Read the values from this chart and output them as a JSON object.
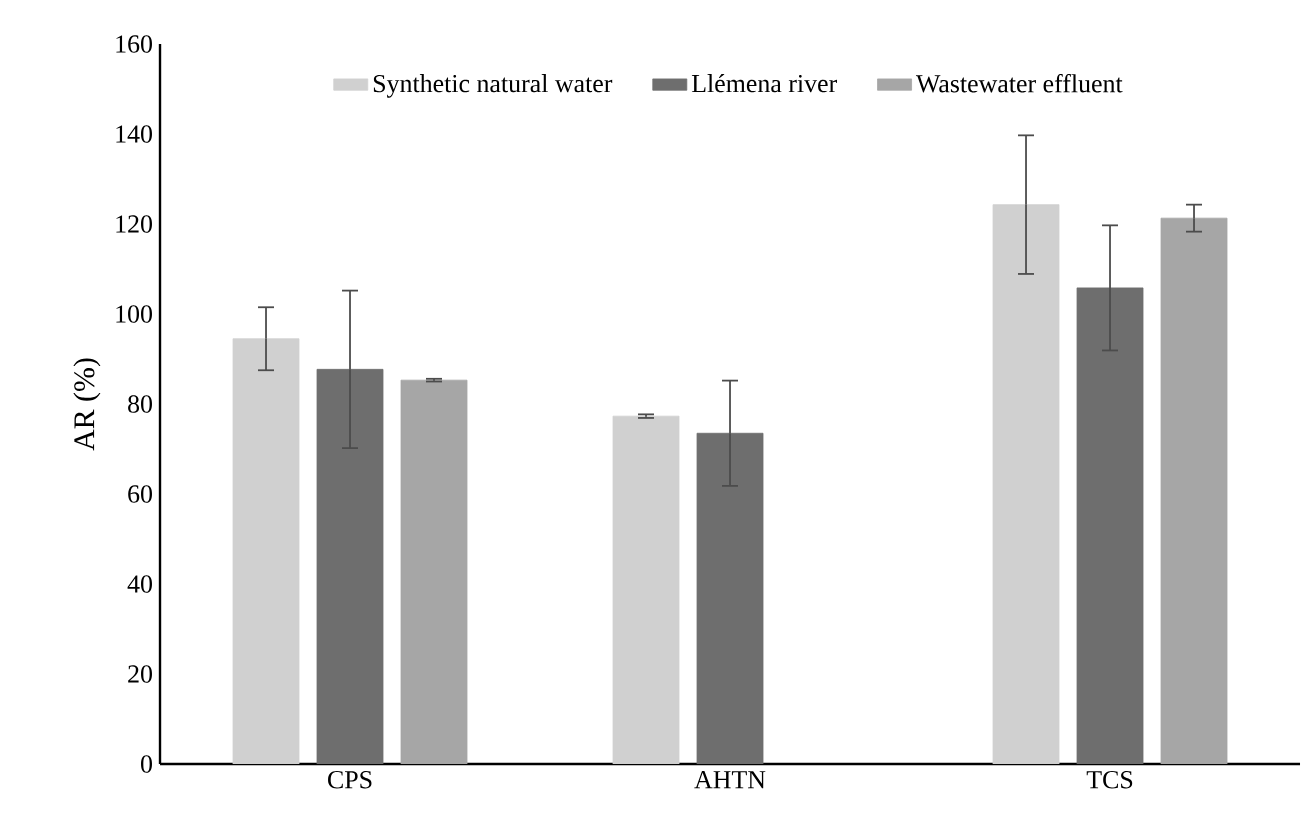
{
  "chart_data": {
    "type": "bar",
    "ylabel": "AR (%)",
    "categories": [
      "CPS",
      "AHTN",
      "TCS"
    ],
    "ylim": [
      0,
      160
    ],
    "yticks": [
      0,
      20,
      40,
      60,
      80,
      100,
      120,
      140,
      160
    ],
    "legend": "top",
    "grid": false,
    "series": [
      {
        "name": "Synthetic natural water",
        "color": "#d0d0d0",
        "values": [
          94.5,
          77.3,
          124.3
        ],
        "errors": [
          7,
          0.4,
          15.4
        ]
      },
      {
        "name": "Llémena river",
        "color": "#6e6e6e",
        "values": [
          87.7,
          73.5,
          105.8
        ],
        "errors": [
          17.5,
          11.7,
          13.9
        ]
      },
      {
        "name": "Wastewater effluent",
        "color": "#a6a6a6",
        "values": [
          85.3,
          null,
          121.3
        ],
        "errors": [
          0.3,
          null,
          3
        ]
      }
    ]
  }
}
